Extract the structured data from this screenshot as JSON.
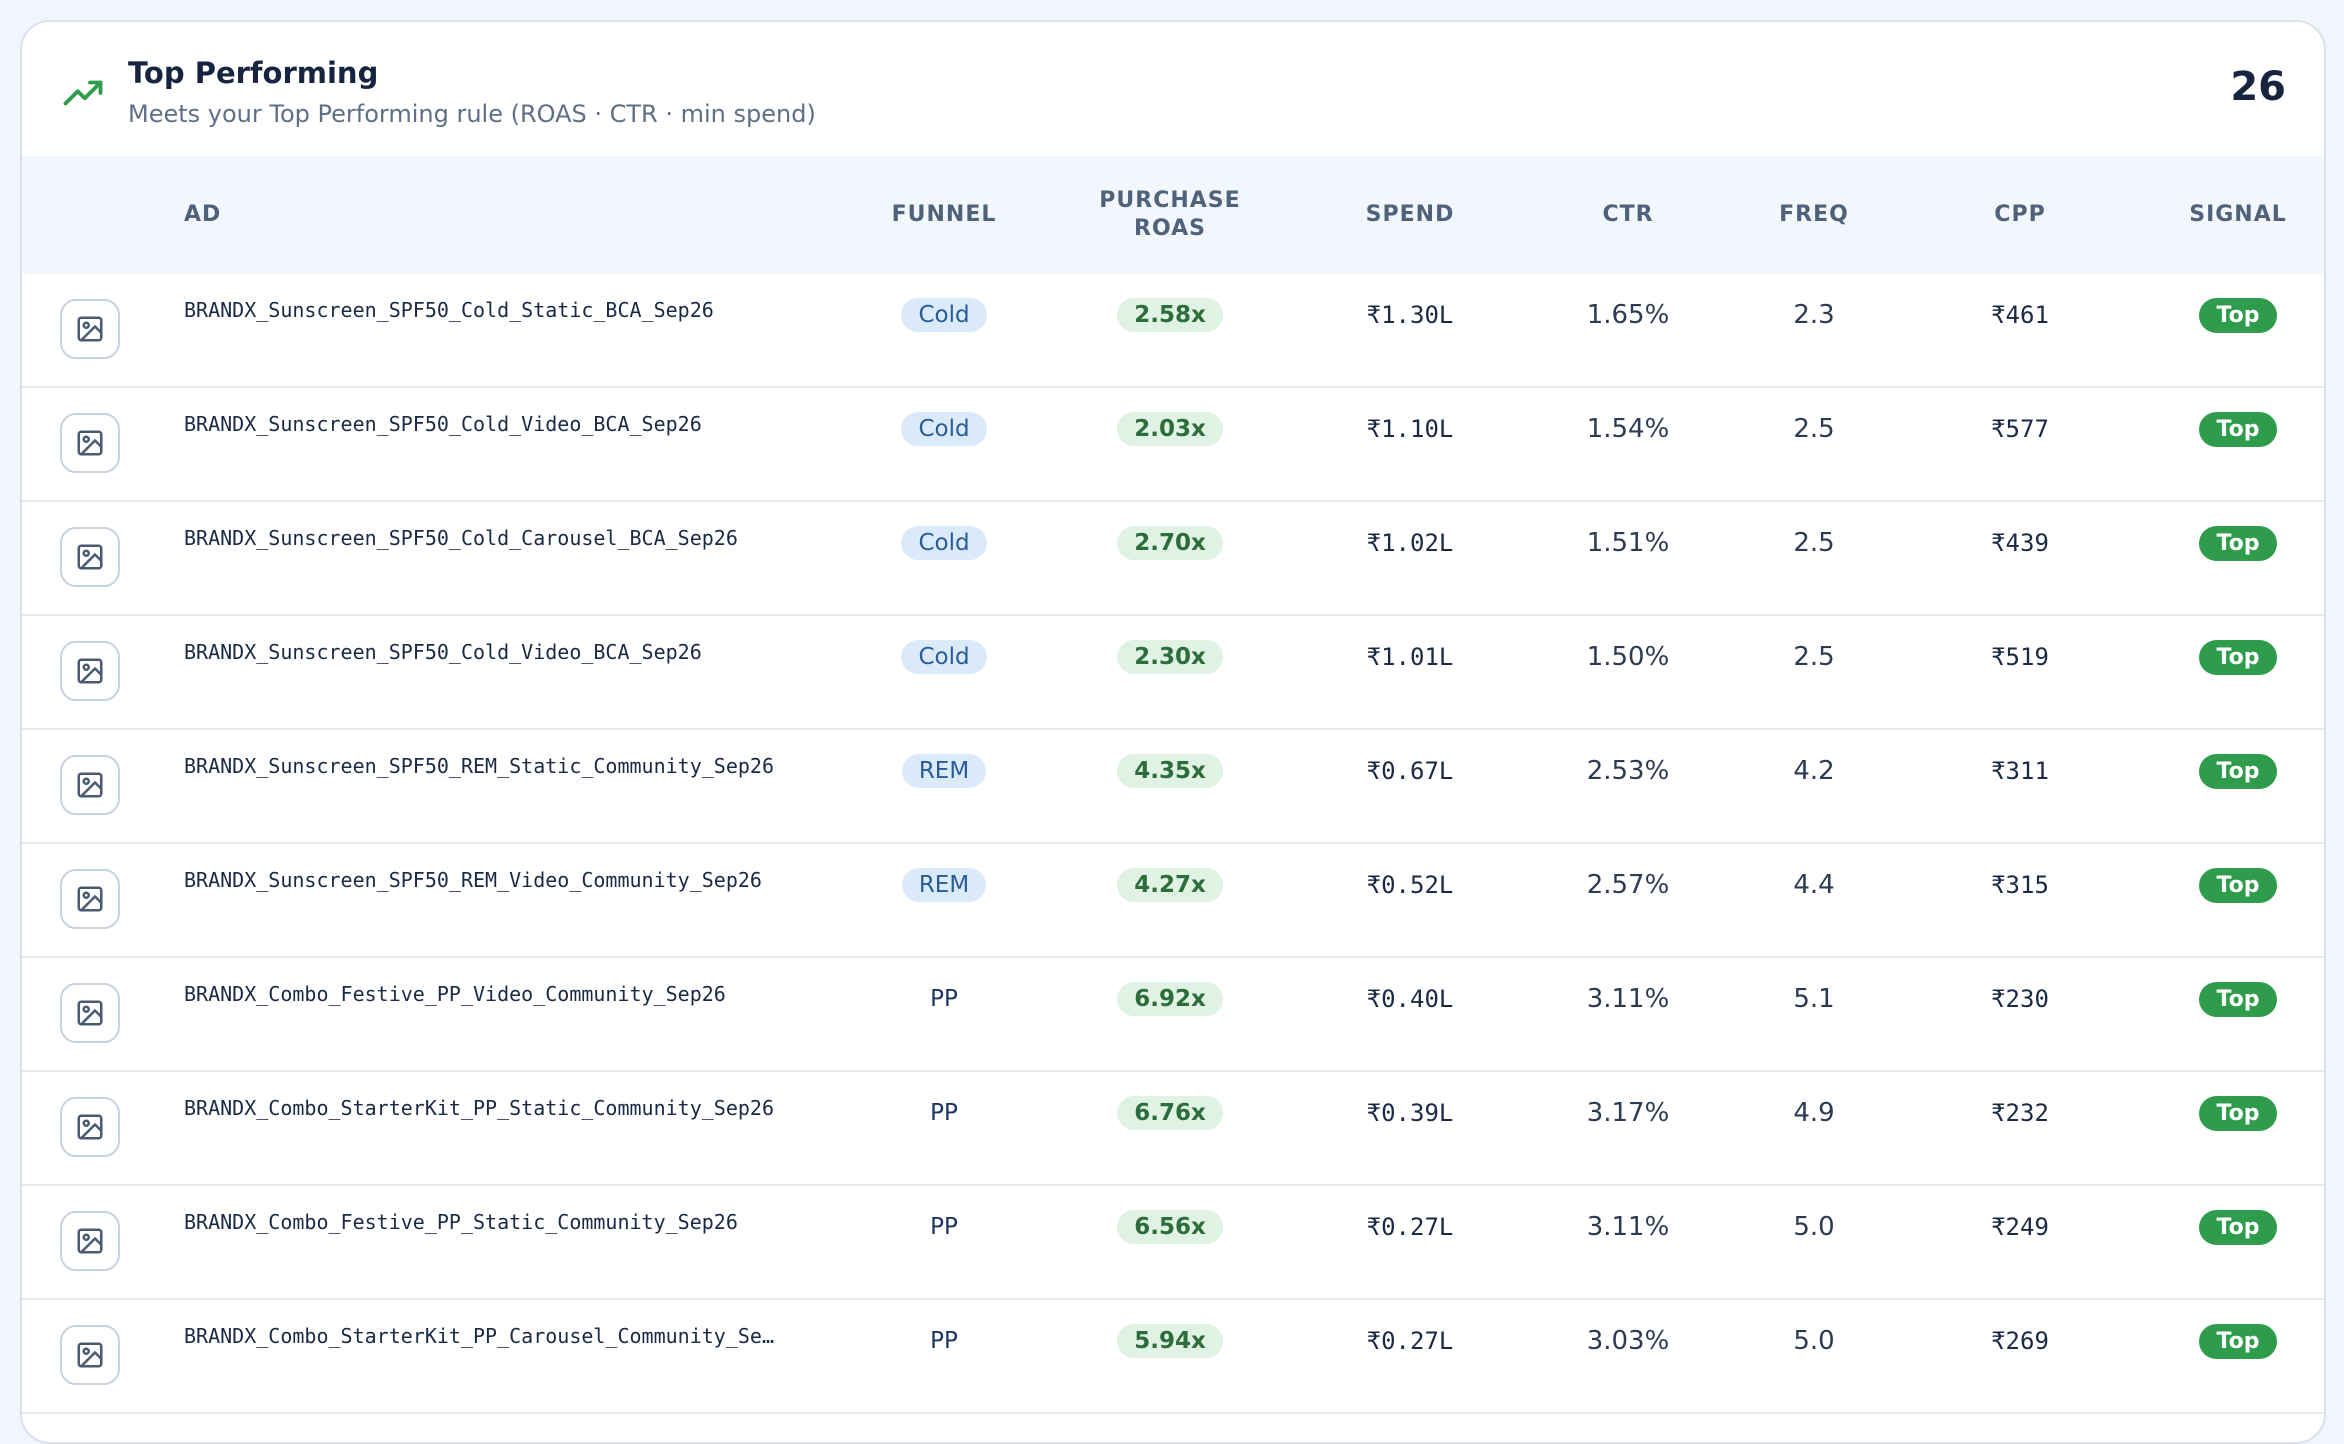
{
  "panel": {
    "title": "Top Performing",
    "subtitle": "Meets your Top Performing rule (ROAS · CTR · min spend)",
    "count": "26"
  },
  "columns": {
    "ad": "AD",
    "funnel": "FUNNEL",
    "roas_line1": "PURCHASE",
    "roas_line2": "ROAS",
    "spend": "SPEND",
    "ctr": "CTR",
    "freq": "FREQ",
    "cpp": "CPP",
    "signal": "SIGNAL"
  },
  "rows": [
    {
      "ad": "BRANDX_Sunscreen_SPF50_Cold_Static_BCA_Sep26",
      "funnel": "Cold",
      "roas": "2.58x",
      "spend": "₹1.30L",
      "ctr": "1.65%",
      "freq": "2.3",
      "cpp": "₹461",
      "signal": "Top"
    },
    {
      "ad": "BRANDX_Sunscreen_SPF50_Cold_Video_BCA_Sep26",
      "funnel": "Cold",
      "roas": "2.03x",
      "spend": "₹1.10L",
      "ctr": "1.54%",
      "freq": "2.5",
      "cpp": "₹577",
      "signal": "Top"
    },
    {
      "ad": "BRANDX_Sunscreen_SPF50_Cold_Carousel_BCA_Sep26",
      "funnel": "Cold",
      "roas": "2.70x",
      "spend": "₹1.02L",
      "ctr": "1.51%",
      "freq": "2.5",
      "cpp": "₹439",
      "signal": "Top"
    },
    {
      "ad": "BRANDX_Sunscreen_SPF50_Cold_Video_BCA_Sep26",
      "funnel": "Cold",
      "roas": "2.30x",
      "spend": "₹1.01L",
      "ctr": "1.50%",
      "freq": "2.5",
      "cpp": "₹519",
      "signal": "Top"
    },
    {
      "ad": "BRANDX_Sunscreen_SPF50_REM_Static_Community_Sep26",
      "funnel": "REM",
      "roas": "4.35x",
      "spend": "₹0.67L",
      "ctr": "2.53%",
      "freq": "4.2",
      "cpp": "₹311",
      "signal": "Top"
    },
    {
      "ad": "BRANDX_Sunscreen_SPF50_REM_Video_Community_Sep26",
      "funnel": "REM",
      "roas": "4.27x",
      "spend": "₹0.52L",
      "ctr": "2.57%",
      "freq": "4.4",
      "cpp": "₹315",
      "signal": "Top"
    },
    {
      "ad": "BRANDX_Combo_Festive_PP_Video_Community_Sep26",
      "funnel": "PP",
      "roas": "6.92x",
      "spend": "₹0.40L",
      "ctr": "3.11%",
      "freq": "5.1",
      "cpp": "₹230",
      "signal": "Top"
    },
    {
      "ad": "BRANDX_Combo_StarterKit_PP_Static_Community_Sep26",
      "funnel": "PP",
      "roas": "6.76x",
      "spend": "₹0.39L",
      "ctr": "3.17%",
      "freq": "4.9",
      "cpp": "₹232",
      "signal": "Top"
    },
    {
      "ad": "BRANDX_Combo_Festive_PP_Static_Community_Sep26",
      "funnel": "PP",
      "roas": "6.56x",
      "spend": "₹0.27L",
      "ctr": "3.11%",
      "freq": "5.0",
      "cpp": "₹249",
      "signal": "Top"
    },
    {
      "ad": "BRANDX_Combo_StarterKit_PP_Carousel_Community_Se…",
      "funnel": "PP",
      "roas": "5.94x",
      "spend": "₹0.27L",
      "ctr": "3.03%",
      "freq": "5.0",
      "cpp": "₹269",
      "signal": "Top"
    }
  ],
  "icons": {
    "header": "trending-up-icon",
    "thumbnail": "image-placeholder-icon"
  },
  "colors": {
    "accent_green": "#2e9c4b",
    "funnel_pill_bg": "#dbeaf9",
    "roas_pill_bg": "#dff2e4"
  }
}
